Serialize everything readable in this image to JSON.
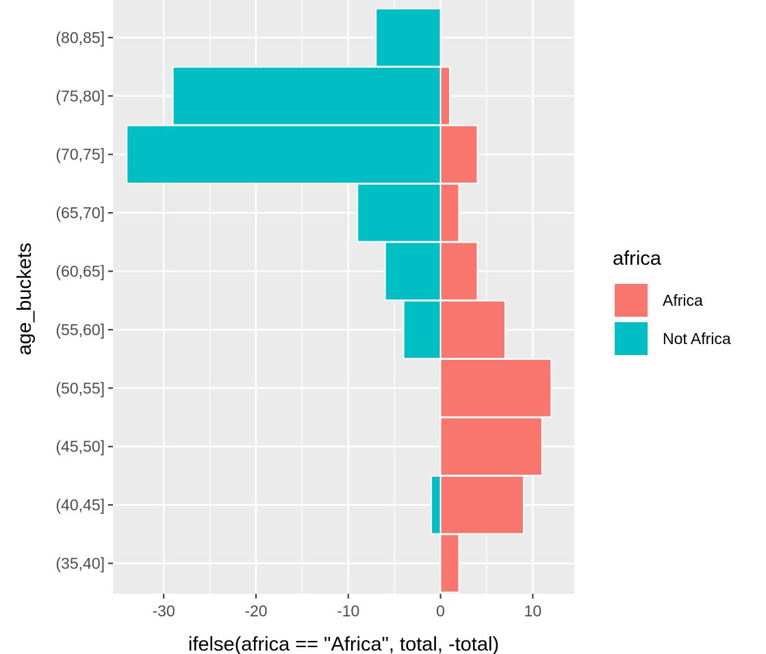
{
  "chart_data": {
    "type": "bar",
    "orientation": "horizontal",
    "categories": [
      "(35,40]",
      "(40,45]",
      "(45,50]",
      "(50,55]",
      "(55,60]",
      "(60,65]",
      "(65,70]",
      "(70,75]",
      "(75,80]",
      "(80,85]"
    ],
    "series": [
      {
        "name": "Africa",
        "color": "#F8766D",
        "values": [
          2,
          9,
          11,
          12,
          7,
          4,
          2,
          4,
          1,
          0
        ]
      },
      {
        "name": "Not Africa",
        "color": "#00BFC4",
        "values": [
          0,
          -1,
          0,
          0,
          -4,
          -6,
          -9,
          -34,
          -29,
          -7
        ]
      }
    ],
    "xlabel": "ifelse(africa == \"Africa\", total, -total)",
    "ylabel": "age_buckets",
    "xlim": [
      -35.5,
      14.5
    ],
    "x_ticks": [
      -30,
      -20,
      -10,
      0,
      10
    ],
    "x_tick_labels": [
      "-30",
      "-20",
      "-10",
      "0",
      "10"
    ],
    "legend": {
      "title": "africa",
      "position": "right"
    },
    "grid": true,
    "background": "#EBEBEB",
    "grid_color": "#FFFFFF"
  }
}
